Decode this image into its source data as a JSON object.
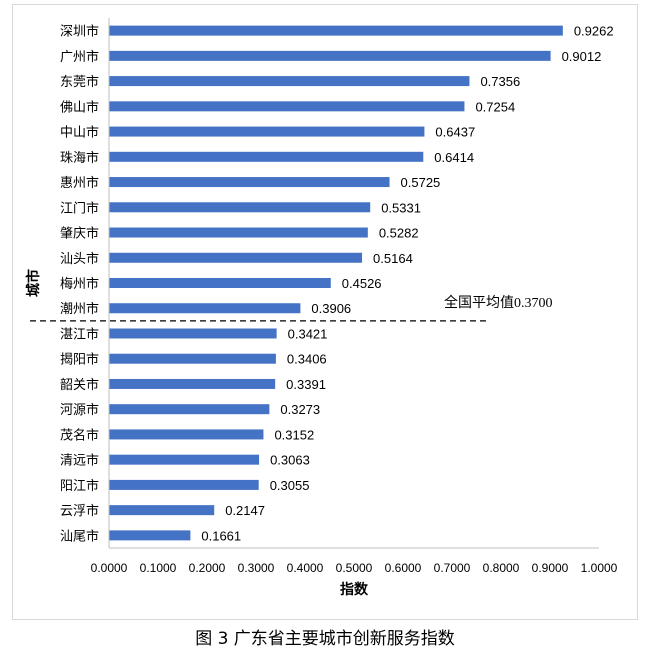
{
  "caption": "图 3 广东省主要城市创新服务指数",
  "chart_data": {
    "type": "bar",
    "orientation": "horizontal",
    "categories": [
      "深圳市",
      "广州市",
      "东莞市",
      "佛山市",
      "中山市",
      "珠海市",
      "惠州市",
      "江门市",
      "肇庆市",
      "汕头市",
      "梅州市",
      "潮州市",
      "湛江市",
      "揭阳市",
      "韶关市",
      "河源市",
      "茂名市",
      "清远市",
      "阳江市",
      "云浮市",
      "汕尾市"
    ],
    "values": [
      0.9262,
      0.9012,
      0.7356,
      0.7254,
      0.6437,
      0.6414,
      0.5725,
      0.5331,
      0.5282,
      0.5164,
      0.4526,
      0.3906,
      0.3421,
      0.3406,
      0.3391,
      0.3273,
      0.3152,
      0.3063,
      0.3055,
      0.2147,
      0.1661
    ],
    "data_labels": [
      "0.9262",
      "0.9012",
      "0.7356",
      "0.7254",
      "0.6437",
      "0.6414",
      "0.5725",
      "0.5331",
      "0.5282",
      "0.5164",
      "0.4526",
      "0.3906",
      "0.3421",
      "0.3406",
      "0.3391",
      "0.3273",
      "0.3152",
      "0.3063",
      "0.3055",
      "0.2147",
      "0.1661"
    ],
    "xlabel": "指数",
    "ylabel": "城市",
    "xlim": [
      0,
      1.0
    ],
    "x_ticks": [
      "0.0000",
      "0.1000",
      "0.2000",
      "0.3000",
      "0.4000",
      "0.5000",
      "0.6000",
      "0.7000",
      "0.8000",
      "0.9000",
      "1.0000"
    ],
    "x_tick_values": [
      0,
      0.1,
      0.2,
      0.3,
      0.4,
      0.5,
      0.6,
      0.7,
      0.8,
      0.9,
      1.0
    ],
    "grid": false,
    "bar_color": "#4472c4",
    "reference_line": {
      "label": "全国平均值0.3700",
      "value": 0.37,
      "style": "dashed"
    }
  }
}
